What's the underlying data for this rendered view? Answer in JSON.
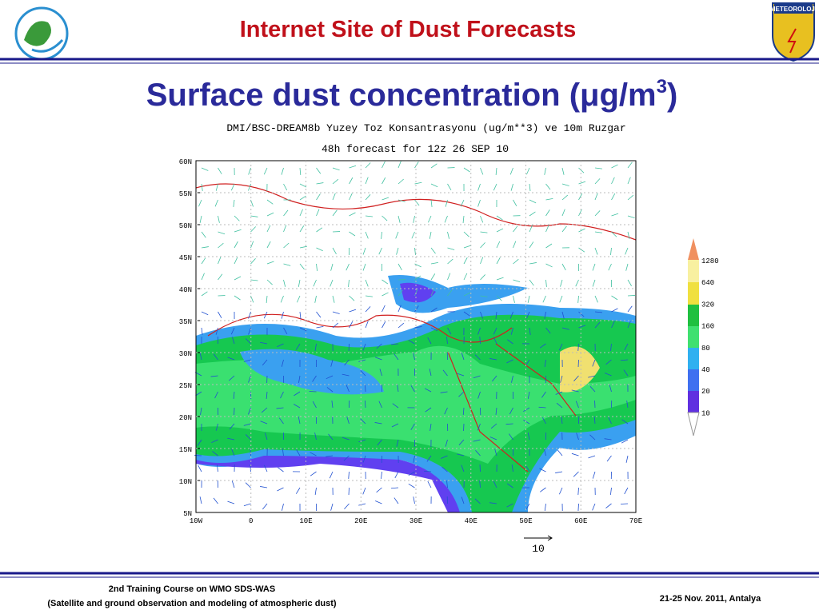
{
  "header": {
    "title": "Internet Site of Dust Forecasts",
    "logo_right": "METEOROLOJİ"
  },
  "slide_title": {
    "text": "Surface dust concentration (μg/m",
    "superscript": "3",
    "closing": ")"
  },
  "map": {
    "title_line1": "DMI/BSC-DREAM8b Yuzey Toz Konsantrasyonu (ug/m**3) ve 10m Ruzgar",
    "title_line2": "48h forecast for 12z 26 SEP 10",
    "lat_labels": [
      "60N",
      "55N",
      "50N",
      "45N",
      "40N",
      "35N",
      "30N",
      "25N",
      "20N",
      "15N",
      "10N",
      "5N"
    ],
    "lon_labels": [
      "10W",
      "0",
      "10E",
      "20E",
      "30E",
      "40E",
      "50E",
      "60E",
      "70E"
    ],
    "legend_labels": [
      "1280",
      "640",
      "320",
      "160",
      "80",
      "40",
      "20",
      "10"
    ],
    "wind_scale_label": "10"
  },
  "footer": {
    "left_line1": "2nd Training Course on WMO SDS-WAS",
    "left_line2": "(Satellite and ground observation and modeling of atmospheric dust)",
    "right": "21-25 Nov. 2011, Antalya"
  }
}
